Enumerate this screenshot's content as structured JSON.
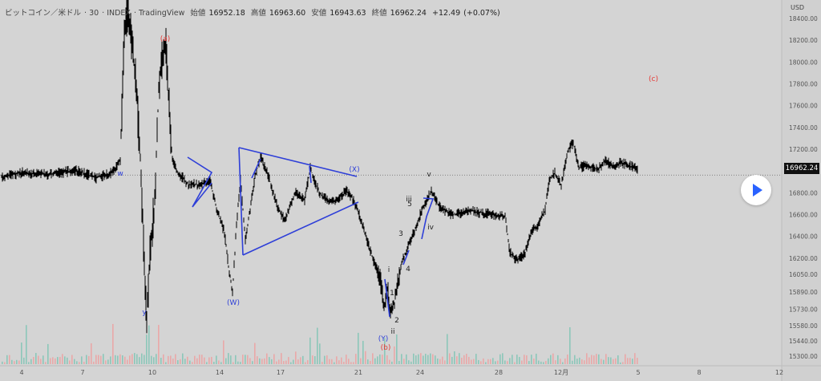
{
  "header": {
    "symbol": "ビットコイン／米ドル",
    "interval": "30",
    "source": "INDEX",
    "platform": "TradingView",
    "open_label": "始値",
    "open": "16952.18",
    "high_label": "高値",
    "high": "16963.60",
    "low_label": "安値",
    "low": "16943.63",
    "close_label": "終値",
    "close": "16962.24",
    "change": "+12.49",
    "change_pct": "(+0.07%)"
  },
  "current_price_label": "16962.24",
  "colors": {
    "background": "#d4d4d4",
    "candle": "#000000",
    "trendline": "#2e3fd8",
    "wave_red": "#e53935",
    "wave_blue": "#2e3fd8",
    "volume_up": "#7fc4b4",
    "volume_down": "#eda0a0",
    "play_accent": "#2962ff"
  },
  "chart_data": {
    "type": "line",
    "currency": "USD",
    "ylim": [
      15300,
      18500
    ],
    "x": [
      "4",
      "7",
      "10",
      "14",
      "17",
      "21",
      "24",
      "28",
      "12月",
      "5",
      "8",
      "12"
    ],
    "series": [
      {
        "x": [
          "4",
          "7",
          "10",
          "14",
          "17",
          "21",
          "24",
          "28",
          "12月",
          "5"
        ],
        "values": [
          16900,
          16950,
          15700,
          16850,
          16500,
          16600,
          16650,
          16500,
          16950,
          16962
        ]
      }
    ],
    "yticks": [
      "15300.00",
      "15440.00",
      "15580.00",
      "15730.00",
      "15890.00",
      "16050.00",
      "16200.00",
      "16400.00",
      "16600.00",
      "16800.00",
      "17000.00",
      "17200.00",
      "17400.00",
      "17600.00",
      "17800.00",
      "18000.00",
      "18200.00",
      "18400.00"
    ],
    "current_price": 16962.24,
    "grid": false,
    "wave_labels": [
      {
        "text": "(a)",
        "color": "red"
      },
      {
        "text": "(c)",
        "color": "red"
      },
      {
        "text": "(b)",
        "color": "red"
      },
      {
        "text": "w",
        "color": "blue"
      },
      {
        "text": "y",
        "color": "blue"
      },
      {
        "text": "(W)",
        "color": "blue"
      },
      {
        "text": "(X)",
        "color": "blue"
      },
      {
        "text": "(Y)",
        "color": "blue"
      },
      {
        "text": "i",
        "color": "black"
      },
      {
        "text": "ii",
        "color": "black"
      },
      {
        "text": "iii",
        "color": "black"
      },
      {
        "text": "iv",
        "color": "black"
      },
      {
        "text": "v",
        "color": "black"
      },
      {
        "text": "1",
        "color": "black"
      },
      {
        "text": "2",
        "color": "black"
      },
      {
        "text": "3",
        "color": "black"
      },
      {
        "text": "4",
        "color": "black"
      },
      {
        "text": "5",
        "color": "black"
      }
    ]
  }
}
